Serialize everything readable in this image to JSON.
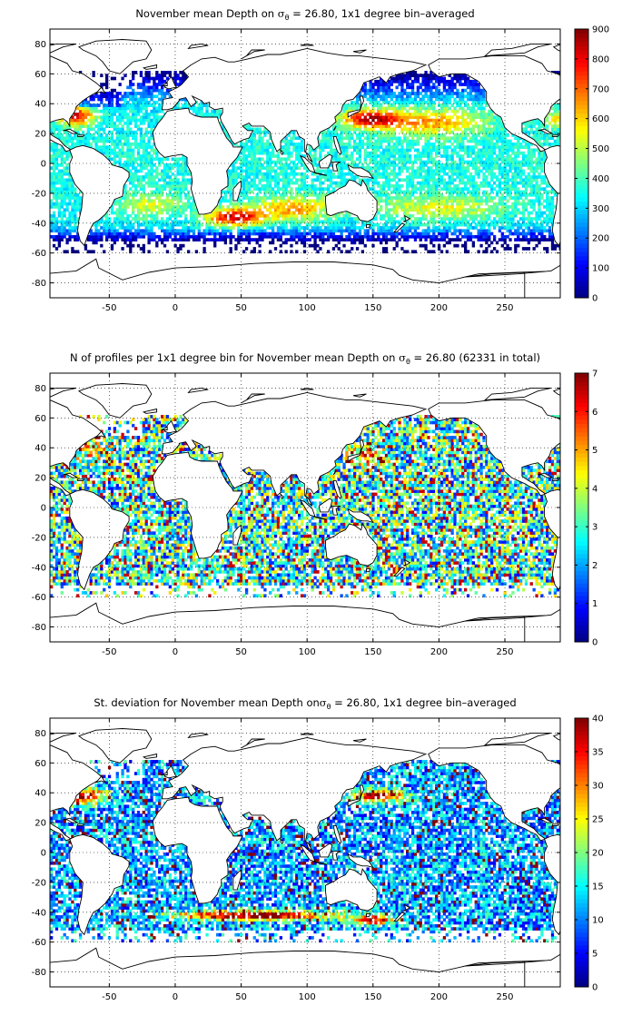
{
  "chart_data": [
    {
      "type": "heatmap",
      "title_prefix": "November mean Depth on ",
      "title_symbol": "σ",
      "title_subscript": "θ",
      "title_suffix": " = 26.80, 1x1 degree bin–averaged",
      "x_ticks": [
        -50,
        0,
        50,
        100,
        150,
        200,
        250
      ],
      "y_ticks": [
        80,
        60,
        40,
        20,
        0,
        -20,
        -40,
        -60,
        -80
      ],
      "xlim": [
        -95,
        292
      ],
      "ylim": [
        -90,
        90
      ],
      "colorbar": {
        "ticks": [
          0,
          100,
          200,
          300,
          400,
          500,
          600,
          700,
          800,
          900
        ],
        "range": [
          0,
          900
        ],
        "colormap": "jet"
      },
      "grid": true,
      "field": "mean_depth",
      "summary": {
        "subtropical_gyres": "650-850",
        "tropics": "250-400",
        "subpolar": "0-150"
      }
    },
    {
      "type": "heatmap",
      "title_prefix": "N of profiles per 1x1 degree bin for November mean Depth on ",
      "title_symbol": "σ",
      "title_subscript": "θ",
      "title_suffix": " = 26.80 (62331 in total)",
      "x_ticks": [
        -50,
        0,
        50,
        100,
        150,
        200,
        250
      ],
      "y_ticks": [
        80,
        60,
        40,
        20,
        0,
        -20,
        -40,
        -60,
        -80
      ],
      "xlim": [
        -95,
        292
      ],
      "ylim": [
        -90,
        90
      ],
      "colorbar": {
        "ticks": [
          0,
          1,
          2,
          3,
          4,
          5,
          6,
          7
        ],
        "range": [
          0,
          7
        ],
        "colormap": "jet"
      },
      "grid": true,
      "field": "profile_count",
      "total_profiles": 62331
    },
    {
      "type": "heatmap",
      "title_prefix": "St. deviation for November mean Depth on",
      "title_symbol": "σ",
      "title_subscript": "θ",
      "title_suffix": " = 26.80, 1x1 degree bin–averaged",
      "x_ticks": [
        -50,
        0,
        50,
        100,
        150,
        200,
        250
      ],
      "y_ticks": [
        80,
        60,
        40,
        20,
        0,
        -20,
        -40,
        -60,
        -80
      ],
      "xlim": [
        -95,
        292
      ],
      "ylim": [
        -90,
        90
      ],
      "colorbar": {
        "ticks": [
          0,
          5,
          10,
          15,
          20,
          25,
          30,
          35,
          40
        ],
        "range": [
          0,
          40
        ],
        "colormap": "jet"
      },
      "grid": true,
      "field": "std_depth",
      "summary": {
        "kuroshio_gulfstream": "35-40",
        "southern_ocean_band": "35-40",
        "interior": "5-20"
      }
    }
  ]
}
